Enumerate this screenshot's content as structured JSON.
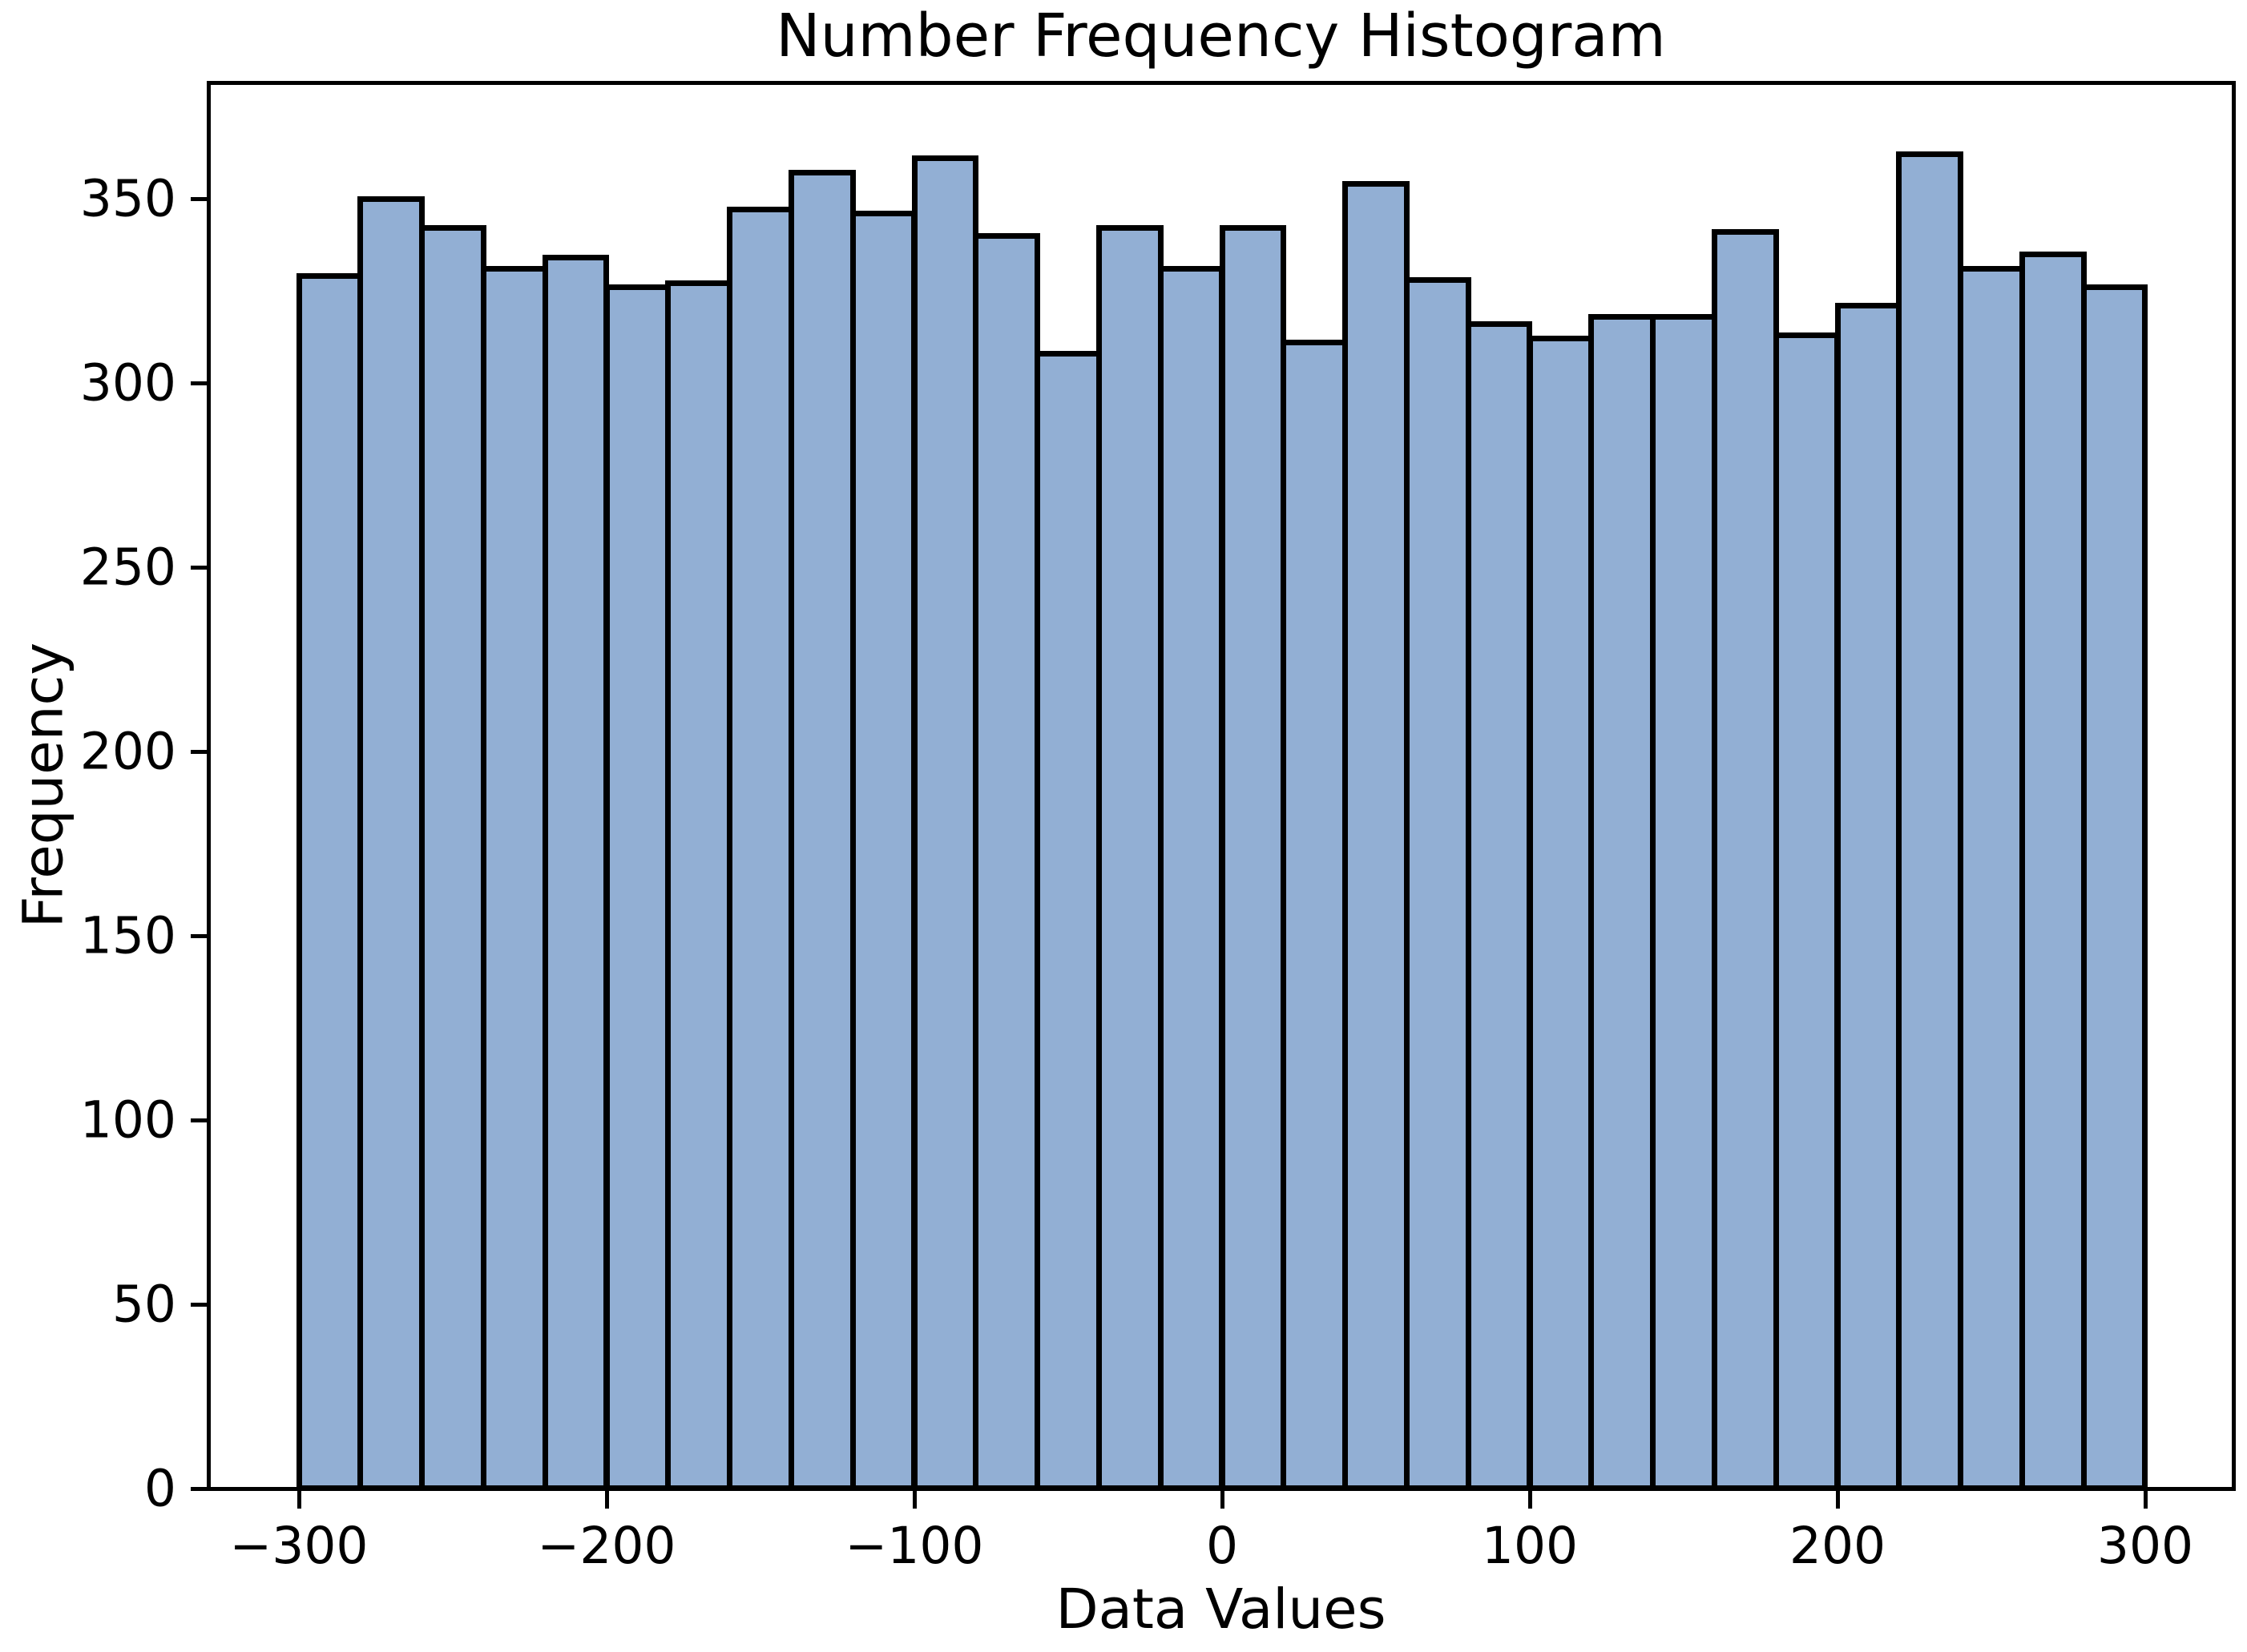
{
  "chart_data": {
    "type": "bar",
    "subtype": "histogram",
    "title": "Number Frequency Histogram",
    "xlabel": "Data Values",
    "ylabel": "Frequency",
    "bin_edges": [
      -300,
      -280,
      -260,
      -240,
      -220,
      -200,
      -180,
      -160,
      -140,
      -120,
      -100,
      -80,
      -60,
      -40,
      -20,
      0,
      20,
      40,
      60,
      80,
      100,
      120,
      140,
      160,
      180,
      200,
      220,
      240,
      260,
      280,
      300
    ],
    "values": [
      329,
      350,
      342,
      331,
      334,
      326,
      327,
      347,
      357,
      346,
      361,
      340,
      308,
      342,
      331,
      342,
      311,
      354,
      328,
      316,
      312,
      318,
      318,
      341,
      313,
      321,
      362,
      331,
      335,
      326
    ],
    "x_tick_values": [
      -300,
      -200,
      -100,
      0,
      100,
      200,
      300
    ],
    "x_tick_labels": [
      "−300",
      "−200",
      "−100",
      "0",
      "100",
      "200",
      "300"
    ],
    "y_tick_values": [
      0,
      50,
      100,
      150,
      200,
      250,
      300,
      350
    ],
    "y_tick_labels": [
      "0",
      "50",
      "100",
      "150",
      "200",
      "250",
      "300",
      "350"
    ],
    "xlim": [
      -329,
      329
    ],
    "ylim": [
      0,
      381.5
    ],
    "grid": false,
    "legend_position": "none",
    "bar_fill_color": "#92afd4",
    "bar_edge_color": "#000000",
    "axis_color": "#000000",
    "background_color": "#ffffff"
  }
}
